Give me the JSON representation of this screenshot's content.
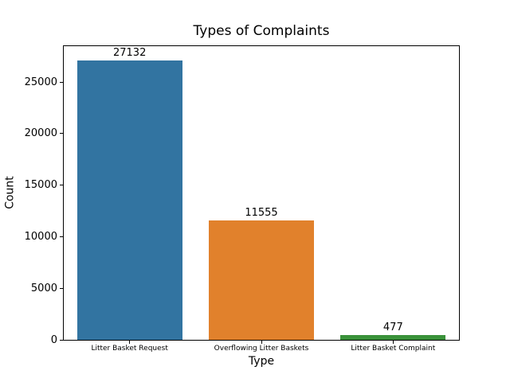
{
  "chart_data": {
    "type": "bar",
    "title": "Types of Complaints",
    "xlabel": "Type",
    "ylabel": "Count",
    "categories": [
      "Litter Basket Request",
      "Overflowing Litter Baskets",
      "Litter Basket Complaint"
    ],
    "values": [
      27132,
      11555,
      477
    ],
    "bar_labels": [
      "27132",
      "11555",
      "477"
    ],
    "bar_colors": [
      "#3274a1",
      "#e1812c",
      "#3a923a"
    ],
    "ylim": [
      0,
      28489
    ],
    "yticks": [
      0,
      5000,
      10000,
      15000,
      20000,
      25000
    ],
    "grid": false,
    "legend": null,
    "background": "#ffffff",
    "spine_color": "#000000"
  }
}
